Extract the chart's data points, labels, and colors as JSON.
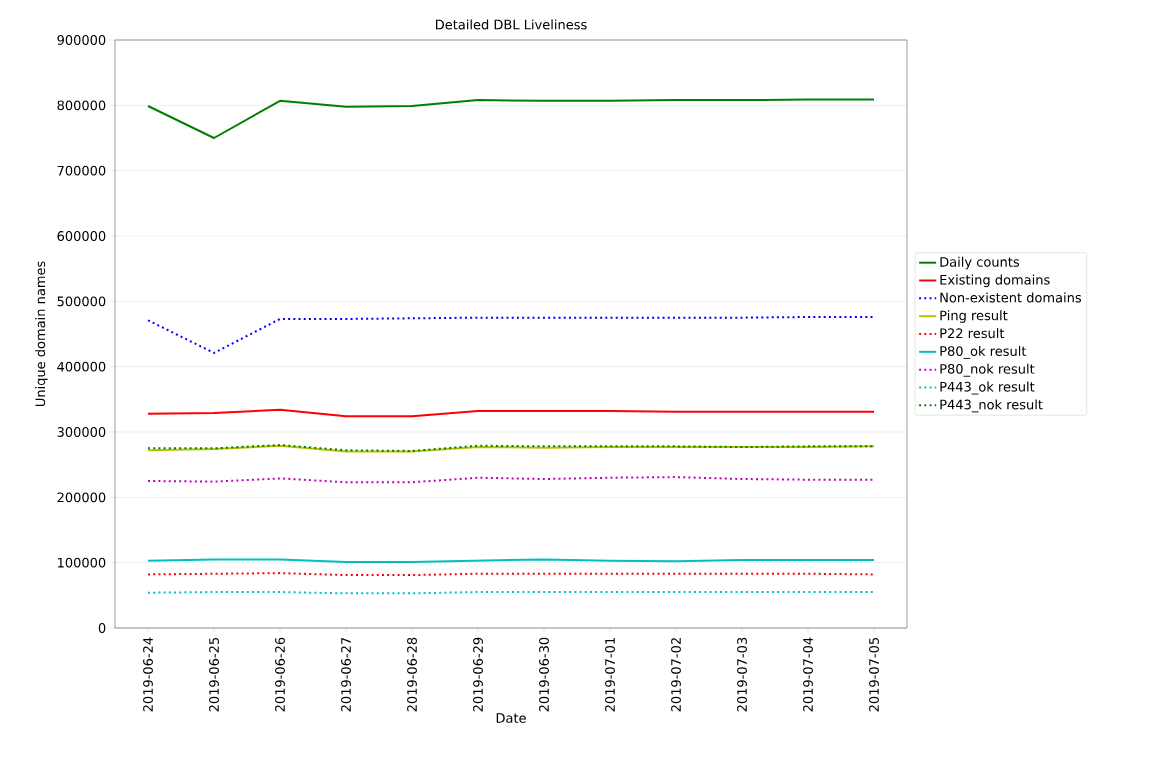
{
  "chart_data": {
    "type": "line",
    "title": "Detailed DBL Liveliness",
    "xlabel": "Date",
    "ylabel": "Unique domain names",
    "categories": [
      "2019-06-24",
      "2019-06-25",
      "2019-06-26",
      "2019-06-27",
      "2019-06-28",
      "2019-06-29",
      "2019-06-30",
      "2019-07-01",
      "2019-07-02",
      "2019-07-03",
      "2019-07-04",
      "2019-07-05"
    ],
    "series": [
      {
        "name": "Daily counts",
        "color": "#008000",
        "line_style": "solid",
        "values": [
          799000,
          750000,
          807000,
          798000,
          799000,
          808000,
          807000,
          807000,
          808000,
          808000,
          809000,
          809000
        ]
      },
      {
        "name": "Existing domains",
        "color": "#ff0000",
        "line_style": "solid",
        "values": [
          328000,
          329000,
          334000,
          324000,
          324000,
          332000,
          332000,
          332000,
          331000,
          331000,
          331000,
          331000
        ]
      },
      {
        "name": "Non-existent domains",
        "color": "#0000ff",
        "line_style": "dotted",
        "values": [
          471000,
          421000,
          473000,
          473000,
          474000,
          475000,
          475000,
          475000,
          475000,
          475000,
          476000,
          476000
        ]
      },
      {
        "name": "Ping result",
        "color": "#bfbf00",
        "line_style": "solid",
        "values": [
          272000,
          274000,
          279000,
          270000,
          270000,
          277000,
          276000,
          277000,
          277000,
          277000,
          277000,
          278000
        ]
      },
      {
        "name": "P22 result",
        "color": "#ff0000",
        "line_style": "dotted",
        "values": [
          82000,
          83000,
          84000,
          81000,
          81000,
          83000,
          83000,
          83000,
          83000,
          83000,
          83000,
          82000
        ]
      },
      {
        "name": "P80_ok result",
        "color": "#00bfbf",
        "line_style": "solid",
        "values": [
          103000,
          105000,
          105000,
          101000,
          101000,
          103000,
          105000,
          103000,
          102000,
          104000,
          104000,
          104000
        ]
      },
      {
        "name": "P80_nok result",
        "color": "#bf00bf",
        "line_style": "dotted",
        "values": [
          225000,
          224000,
          229000,
          223000,
          223000,
          230000,
          228000,
          230000,
          231000,
          228000,
          227000,
          227000
        ]
      },
      {
        "name": "P443_ok result",
        "color": "#00bfbf",
        "line_style": "dotted",
        "values": [
          54000,
          55000,
          55000,
          53000,
          53000,
          55000,
          55000,
          55000,
          55000,
          55000,
          55000,
          55000
        ]
      },
      {
        "name": "P443_nok result",
        "color": "#008000",
        "line_style": "dotted",
        "values": [
          275000,
          275000,
          280000,
          272000,
          271000,
          279000,
          278000,
          278000,
          278000,
          277000,
          278000,
          278000
        ]
      }
    ],
    "ylim": [
      0,
      900000
    ],
    "yticks": [
      0,
      100000,
      200000,
      300000,
      400000,
      500000,
      600000,
      700000,
      800000,
      900000
    ],
    "grid": "y",
    "legend": "right"
  }
}
